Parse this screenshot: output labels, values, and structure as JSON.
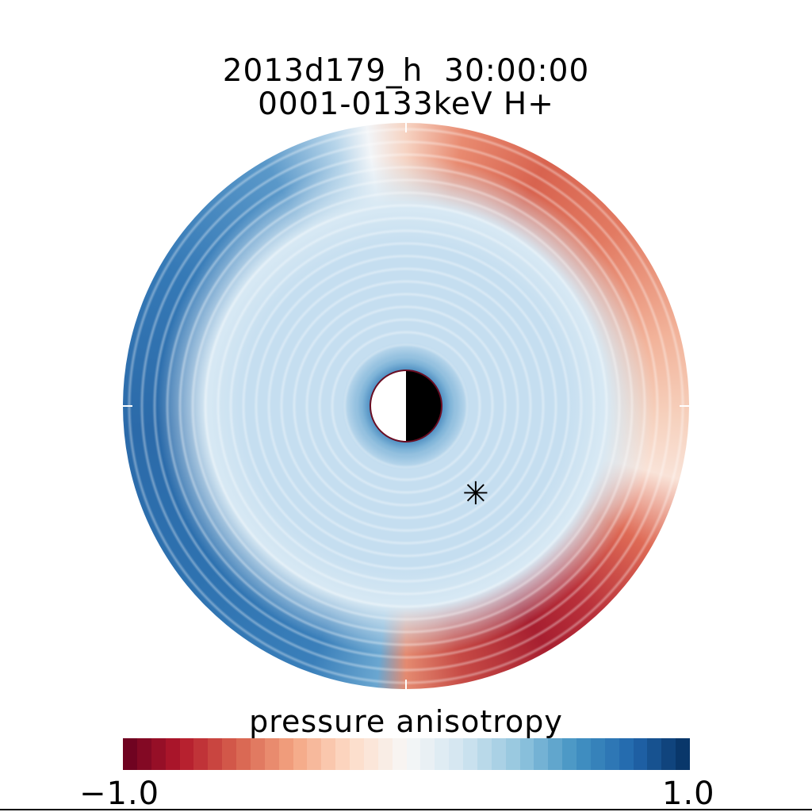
{
  "header": {
    "line1": "2013d179_h  30:00:00",
    "line2": "0001-0133keV H+"
  },
  "marker": {
    "symbol": "✳",
    "icon": "asterisk-icon"
  },
  "chart_data": {
    "type": "heatmap",
    "projection": "polar",
    "title": "2013d179_h  30:00:00 / 0001-0133keV H+",
    "colorbar": {
      "label": "pressure anisotropy",
      "min_label": "−1.0",
      "max_label": "1.0",
      "range": [
        -1.0,
        1.0
      ],
      "colormap": "RdBu",
      "levels": 40,
      "stops": [
        "#67001f",
        "#b2182b",
        "#d6604d",
        "#f4a582",
        "#fddbc7",
        "#f7f7f7",
        "#d1e5f0",
        "#92c5de",
        "#4393c3",
        "#2166ac",
        "#053061"
      ]
    }
  }
}
